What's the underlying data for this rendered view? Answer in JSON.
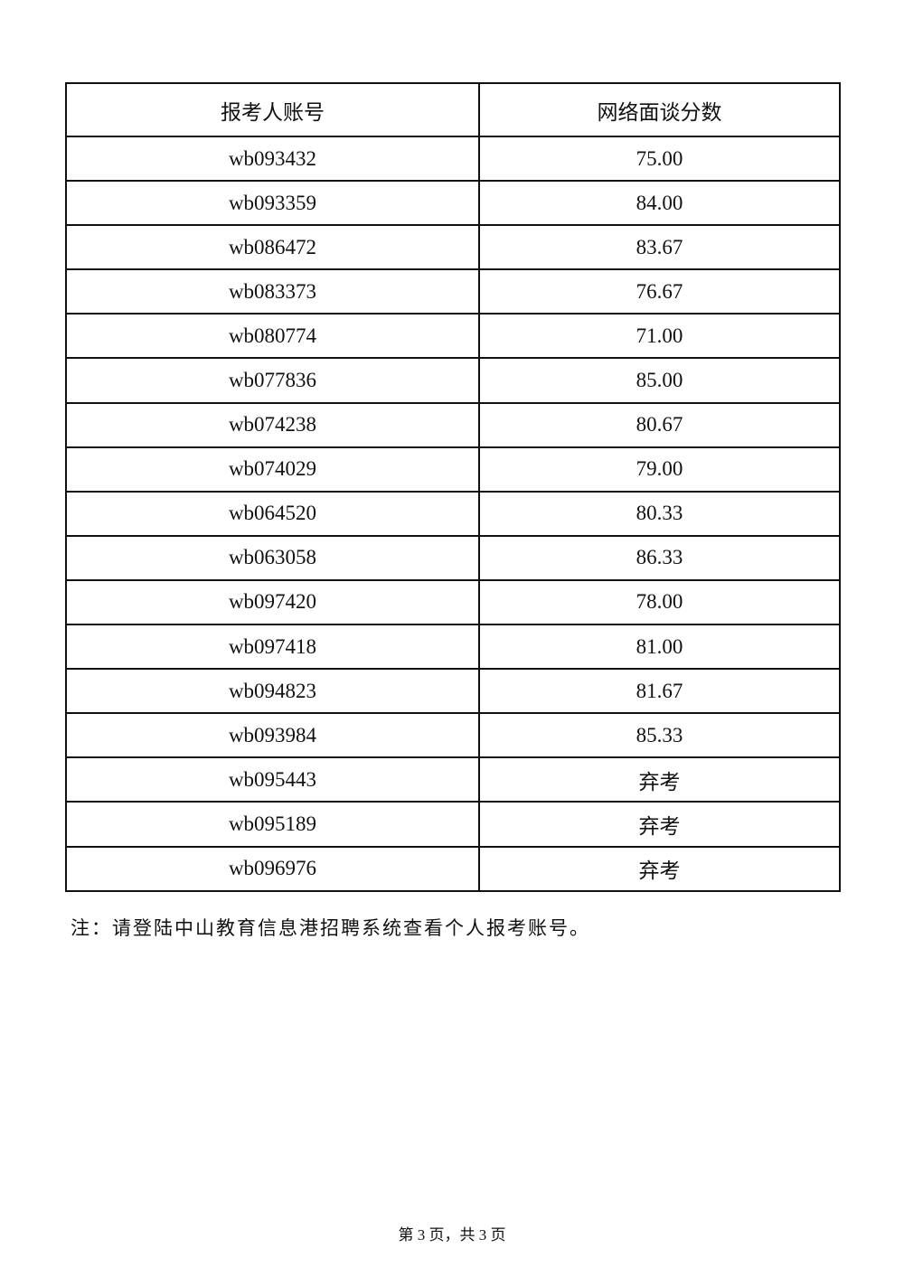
{
  "table": {
    "headers": [
      "报考人账号",
      "网络面谈分数"
    ],
    "rows": [
      {
        "account": "wb093432",
        "score": "75.00"
      },
      {
        "account": "wb093359",
        "score": "84.00"
      },
      {
        "account": "wb086472",
        "score": "83.67"
      },
      {
        "account": "wb083373",
        "score": "76.67"
      },
      {
        "account": "wb080774",
        "score": "71.00"
      },
      {
        "account": "wb077836",
        "score": "85.00"
      },
      {
        "account": "wb074238",
        "score": "80.67"
      },
      {
        "account": "wb074029",
        "score": "79.00"
      },
      {
        "account": "wb064520",
        "score": "80.33"
      },
      {
        "account": "wb063058",
        "score": "86.33"
      },
      {
        "account": "wb097420",
        "score": "78.00"
      },
      {
        "account": "wb097418",
        "score": "81.00"
      },
      {
        "account": "wb094823",
        "score": "81.67"
      },
      {
        "account": "wb093984",
        "score": "85.33"
      },
      {
        "account": "wb095443",
        "score": "弃考"
      },
      {
        "account": "wb095189",
        "score": "弃考"
      },
      {
        "account": "wb096976",
        "score": "弃考"
      }
    ]
  },
  "note": "注：请登陆中山教育信息港招聘系统查看个人报考账号。",
  "footer": "第 3 页，共 3 页"
}
